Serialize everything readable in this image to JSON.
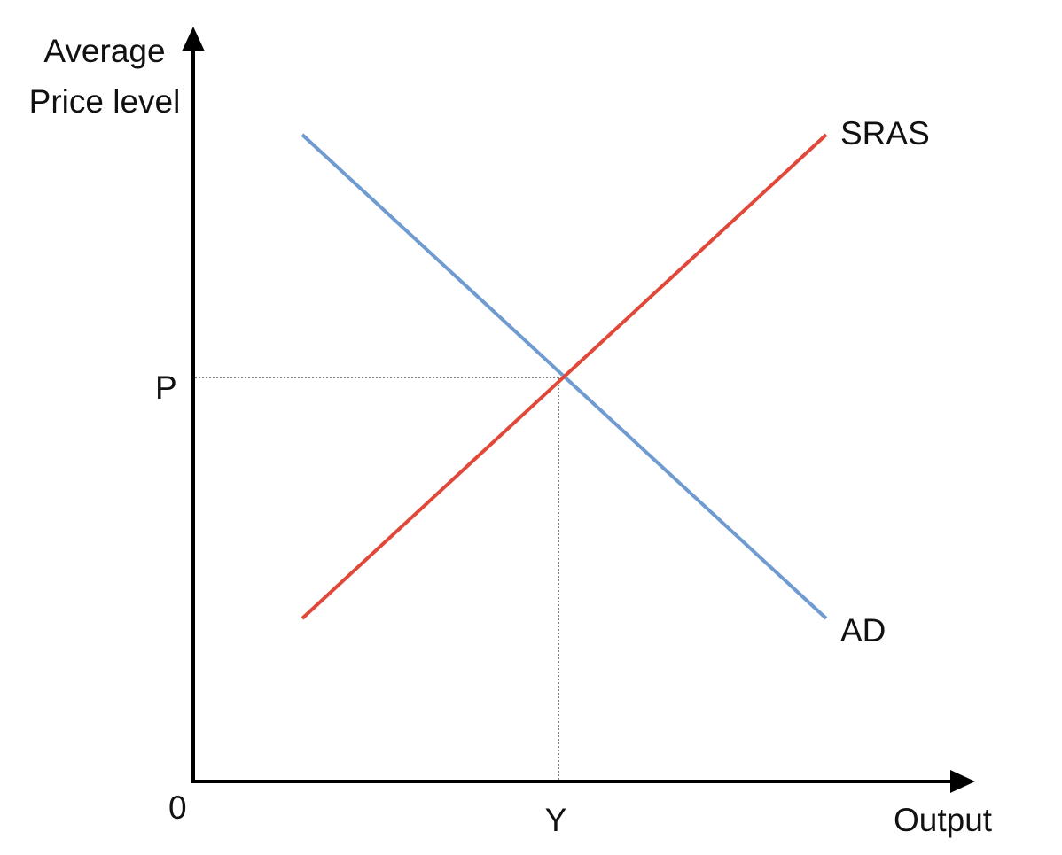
{
  "diagram": {
    "y_axis_label_line1": "Average",
    "y_axis_label_line2": "Price level",
    "x_axis_label": "Output",
    "origin_label": "0",
    "price_label": "P",
    "output_label": "Y",
    "curves": [
      {
        "name": "SRAS",
        "color": "#e0483a",
        "slope": "upward"
      },
      {
        "name": "AD",
        "color": "#6f9bd1",
        "slope": "downward"
      }
    ],
    "guide_line_color": "#555555",
    "axis_color": "#000000"
  }
}
